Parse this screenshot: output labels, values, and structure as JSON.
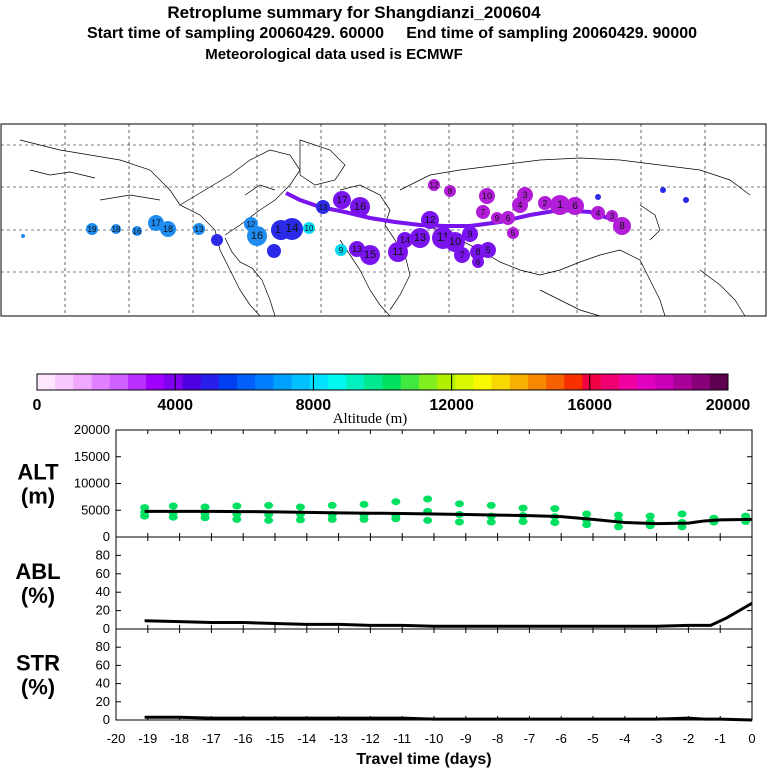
{
  "header": {
    "title": "Retroplume summary for Shangdianzi_200604",
    "subtitle": "Start time of sampling 20060429. 60000     End time of sampling 20060429. 90000",
    "met": "Meteorological data used is ECMWF"
  },
  "colorbar": {
    "label": "Altitude (m)",
    "ticks": [
      "0",
      "4000",
      "8000",
      "12000",
      "16000",
      "20000"
    ],
    "colors": [
      "#ffe8ff",
      "#f8c8ff",
      "#f0a8ff",
      "#e080ff",
      "#d060ff",
      "#b830ff",
      "#a000ff",
      "#8000f0",
      "#5000e0",
      "#2820e8",
      "#0040f0",
      "#0060f8",
      "#0080ff",
      "#00a0ff",
      "#00c0ff",
      "#00e0ff",
      "#00f8f0",
      "#00f0c0",
      "#00e890",
      "#00e060",
      "#40e840",
      "#80f020",
      "#b0f000",
      "#d8f800",
      "#f8f800",
      "#f8d800",
      "#f8b000",
      "#f88800",
      "#f86000",
      "#f83000",
      "#f00040",
      "#f00070",
      "#f000a0",
      "#e000c0",
      "#c800b8",
      "#a80098",
      "#880078",
      "#600050"
    ]
  },
  "map": {
    "colors": {
      "blue": "#2a2ae8",
      "violet": "#7a14ee",
      "purple": "#b21ed8",
      "light_blue": "#1e8cf0",
      "cyan": "#00d8f0"
    },
    "markers": [
      {
        "label": "19",
        "c": "light_blue"
      },
      {
        "label": "18",
        "c": "light_blue"
      },
      {
        "label": "16",
        "c": "light_blue"
      },
      {
        "label": "17",
        "c": "light_blue"
      },
      {
        "label": "18",
        "c": "light_blue"
      },
      {
        "label": "13",
        "c": "light_blue"
      },
      {
        "label": "",
        "c": "blue"
      },
      {
        "label": "12",
        "c": "light_blue"
      },
      {
        "label": "16",
        "c": "light_blue"
      },
      {
        "label": "15",
        "c": "blue"
      },
      {
        "label": "14",
        "c": "blue"
      },
      {
        "label": "10",
        "c": "cyan"
      },
      {
        "label": "",
        "c": "blue"
      },
      {
        "label": "13",
        "c": "blue"
      },
      {
        "label": "17",
        "c": "violet"
      },
      {
        "label": "16",
        "c": "violet"
      },
      {
        "label": "9",
        "c": "cyan"
      },
      {
        "label": "15",
        "c": "violet"
      },
      {
        "label": "13",
        "c": "violet"
      },
      {
        "label": "11",
        "c": "violet"
      },
      {
        "label": "14",
        "c": "violet"
      },
      {
        "label": "13",
        "c": "violet"
      },
      {
        "label": "12",
        "c": "violet"
      },
      {
        "label": "11",
        "c": "violet"
      },
      {
        "label": "10",
        "c": "violet"
      },
      {
        "label": "7",
        "c": "violet"
      },
      {
        "label": "9",
        "c": "violet"
      },
      {
        "label": "8",
        "c": "violet"
      },
      {
        "label": "6",
        "c": "violet"
      },
      {
        "label": "5",
        "c": "violet"
      },
      {
        "label": "12",
        "c": "purple"
      },
      {
        "label": "8",
        "c": "purple"
      },
      {
        "label": "10",
        "c": "purple"
      },
      {
        "label": "7",
        "c": "purple"
      },
      {
        "label": "9",
        "c": "purple"
      },
      {
        "label": "6",
        "c": "purple"
      },
      {
        "label": "5",
        "c": "purple"
      },
      {
        "label": "4",
        "c": "purple"
      },
      {
        "label": "3",
        "c": "purple"
      },
      {
        "label": "2",
        "c": "purple"
      },
      {
        "label": "1",
        "c": "purple"
      },
      {
        "label": "8",
        "c": "purple"
      },
      {
        "label": "6",
        "c": "purple"
      },
      {
        "label": "4",
        "c": "purple"
      },
      {
        "label": "3",
        "c": "purple"
      },
      {
        "label": "",
        "c": "blue"
      },
      {
        "label": "",
        "c": "blue"
      },
      {
        "label": "",
        "c": "blue"
      }
    ]
  },
  "chart_data": [
    {
      "type": "scatter",
      "panel": "ALT",
      "ylabel": "ALT\n(m)",
      "ylim": [
        0,
        20000
      ],
      "yticks": [
        "0",
        "5000",
        "10000",
        "15000",
        "20000"
      ],
      "mean_line": {
        "x": [
          -19.1,
          -18,
          -17,
          -16,
          -15,
          -14,
          -13,
          -12,
          -11,
          -10,
          -9,
          -8,
          -7,
          -6,
          -5,
          -4,
          -3,
          -2,
          -1.5,
          -1,
          0
        ],
        "y": [
          4800,
          4800,
          4800,
          4750,
          4700,
          4600,
          4500,
          4450,
          4400,
          4300,
          4200,
          4100,
          4000,
          3800,
          3300,
          2700,
          2500,
          2600,
          3000,
          3200,
          3300
        ]
      },
      "points": {
        "x": [
          -19.1,
          -19.1,
          -19.1,
          -18.2,
          -18.2,
          -18.2,
          -17.2,
          -17.2,
          -17.2,
          -16.2,
          -16.2,
          -16.2,
          -15.2,
          -15.2,
          -15.2,
          -14.2,
          -14.2,
          -14.2,
          -13.2,
          -13.2,
          -13.2,
          -12.2,
          -12.2,
          -12.2,
          -11.2,
          -11.2,
          -11.2,
          -10.2,
          -10.2,
          -10.2,
          -9.2,
          -9.2,
          -9.2,
          -8.2,
          -8.2,
          -8.2,
          -7.2,
          -7.2,
          -7.2,
          -6.2,
          -6.2,
          -6.2,
          -5.2,
          -5.2,
          -5.2,
          -4.2,
          -4.2,
          -4.2,
          -3.2,
          -3.2,
          -3.2,
          -2.2,
          -2.2,
          -2.2,
          -1.2,
          -1.2,
          -0.2,
          -0.2
        ],
        "y": [
          5500,
          4600,
          3900,
          5800,
          4500,
          3700,
          5600,
          4400,
          3600,
          5800,
          4300,
          3300,
          5900,
          4200,
          3100,
          5600,
          4300,
          3200,
          5900,
          4200,
          3300,
          6100,
          4100,
          3300,
          6600,
          4000,
          3400,
          7100,
          4800,
          3100,
          6200,
          4200,
          2800,
          5900,
          3900,
          2800,
          5400,
          4000,
          2900,
          5300,
          3800,
          2700,
          4300,
          3200,
          2300,
          4100,
          3100,
          1900,
          3900,
          2800,
          2100,
          4300,
          2700,
          1900,
          3500,
          2800,
          3900,
          2900
        ]
      },
      "color": "#00e060"
    },
    {
      "type": "line",
      "panel": "ABL",
      "ylabel": "ABL\n(%)",
      "ylim": [
        0,
        100
      ],
      "yticks": [
        "0",
        "20",
        "40",
        "60",
        "80"
      ],
      "x": [
        -19.1,
        -18,
        -17,
        -16,
        -15,
        -14,
        -13,
        -12,
        -11,
        -10,
        -9,
        -8,
        -7,
        -6,
        -5,
        -4,
        -3,
        -2,
        -1.3,
        -0.8,
        -0.3,
        0
      ],
      "y": [
        9,
        8,
        7,
        7,
        6,
        5,
        5,
        4,
        4,
        3,
        3,
        3,
        3,
        3,
        3,
        3,
        3,
        4,
        4,
        12,
        22,
        28
      ]
    },
    {
      "type": "line",
      "panel": "STR",
      "ylabel": "STR\n(%)",
      "ylim": [
        0,
        100
      ],
      "yticks": [
        "0",
        "20",
        "40",
        "60",
        "80"
      ],
      "x": [
        -19.1,
        -18,
        -17,
        -16,
        -15,
        -14,
        -13,
        -12,
        -11,
        -10,
        -9,
        -8,
        -7,
        -6,
        -5,
        -4,
        -3,
        -2,
        -1.5,
        -1,
        0
      ],
      "y": [
        3,
        3,
        2,
        2,
        2,
        2,
        2,
        2,
        2,
        1,
        1,
        1,
        1,
        1,
        1,
        1,
        1,
        2,
        1,
        1,
        0
      ],
      "xlabel": "Travel time (days)",
      "xlim": [
        -20,
        0
      ],
      "xticks": [
        "-20",
        "-19",
        "-18",
        "-17",
        "-16",
        "-15",
        "-14",
        "-13",
        "-12",
        "-11",
        "-10",
        "-9",
        "-8",
        "-7",
        "-6",
        "-5",
        "-4",
        "-3",
        "-2",
        "-1",
        "0"
      ]
    }
  ]
}
